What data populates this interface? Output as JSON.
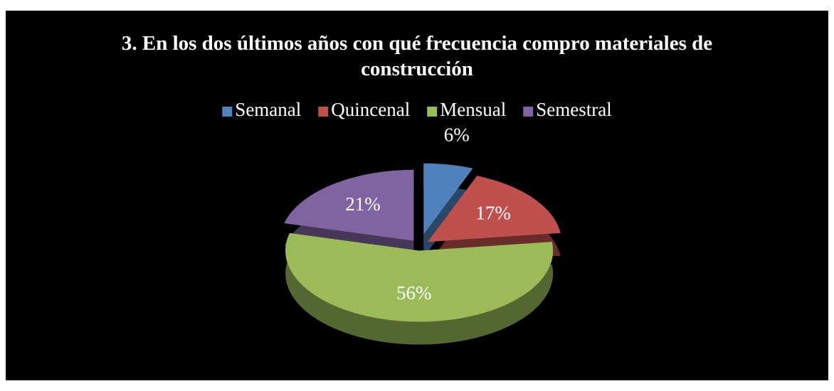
{
  "chart_data": {
    "type": "pie",
    "title": "3. En los dos últimos años con qué frecuencia compro materiales de construcción",
    "title_lines": [
      "3. En los dos últimos años con qué frecuencia compro materiales de",
      "construcción"
    ],
    "categories": [
      "Semanal",
      "Quincenal",
      "Mensual",
      "Semestral"
    ],
    "values": [
      6,
      17,
      56,
      21
    ],
    "value_labels": [
      "6%",
      "17%",
      "56%",
      "21%"
    ],
    "colors": [
      "#4f81bd",
      "#c0504d",
      "#9bbb59",
      "#8064a2"
    ],
    "legend": "top"
  }
}
